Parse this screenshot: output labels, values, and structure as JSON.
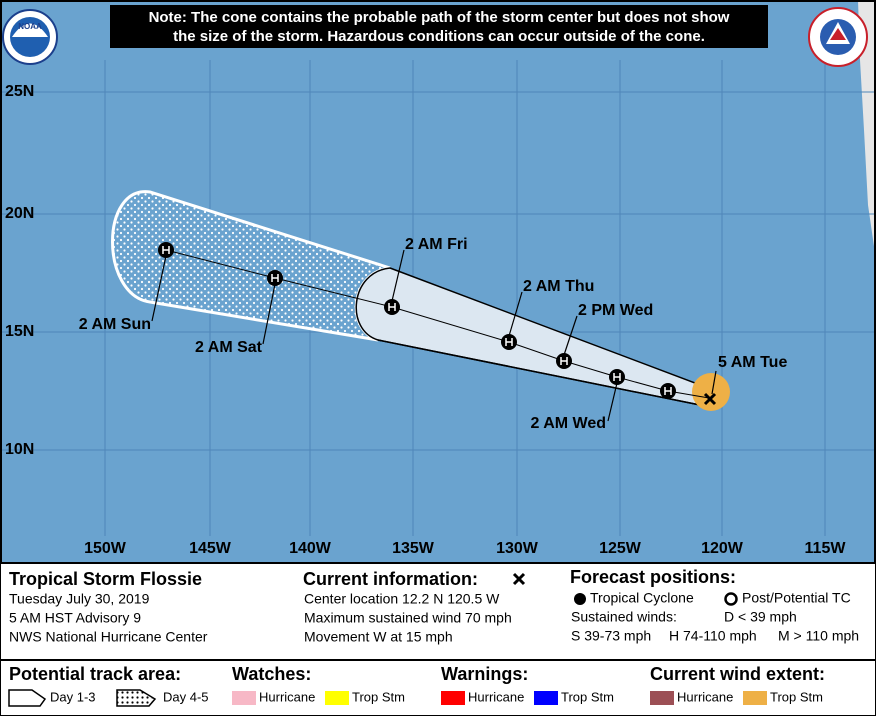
{
  "note": [
    "Note: The cone contains the probable path of the storm center but does not show",
    "the size of the storm. Hazardous conditions can occur outside of the cone."
  ],
  "logo": "NOAA",
  "map": {
    "lat_labels": [
      "25N",
      "20N",
      "15N",
      "10N"
    ],
    "lon_labels": [
      "150W",
      "145W",
      "140W",
      "135W",
      "130W",
      "125W",
      "120W",
      "115W"
    ],
    "forecast_labels": [
      "5 AM Tue",
      "2 AM Wed",
      "2 PM Wed",
      "2 AM Thu",
      "2 AM Fri",
      "2 AM Sat",
      "2 AM Sun"
    ]
  },
  "storm": {
    "name": "Tropical Storm Flossie",
    "date": "Tuesday July 30, 2019",
    "advisory": "5 AM HST Advisory 9",
    "center": "NWS National Hurricane Center"
  },
  "current": {
    "title": "Current information:",
    "location": "Center location 12.2 N 120.5 W",
    "wind": "Maximum sustained wind 70 mph",
    "movement": "Movement W at 15 mph"
  },
  "forecast": {
    "title": "Forecast positions:",
    "tropical": "Tropical Cyclone",
    "post": "Post/Potential TC",
    "winds": "Sustained winds:",
    "d": "D < 39 mph",
    "s": "S 39-73 mph",
    "h": "H 74-110 mph",
    "m": "M > 110 mph"
  },
  "track": {
    "title": "Potential track area:",
    "day13": "Day 1-3",
    "day45": "Day 4-5"
  },
  "watches": {
    "title": "Watches:",
    "items": [
      {
        "name": "Hurricane",
        "color": "#f7b8c6"
      },
      {
        "name": "Trop Stm",
        "color": "#ffff00"
      }
    ]
  },
  "warnings": {
    "title": "Warnings:",
    "items": [
      {
        "name": "Hurricane",
        "color": "#ff0000"
      },
      {
        "name": "Trop Stm",
        "color": "#0000ff"
      }
    ]
  },
  "wind_extent": {
    "title": "Current wind extent:",
    "items": [
      {
        "name": "Hurricane",
        "color": "#9c4f55"
      },
      {
        "name": "Trop Stm",
        "color": "#eeb046"
      }
    ]
  }
}
